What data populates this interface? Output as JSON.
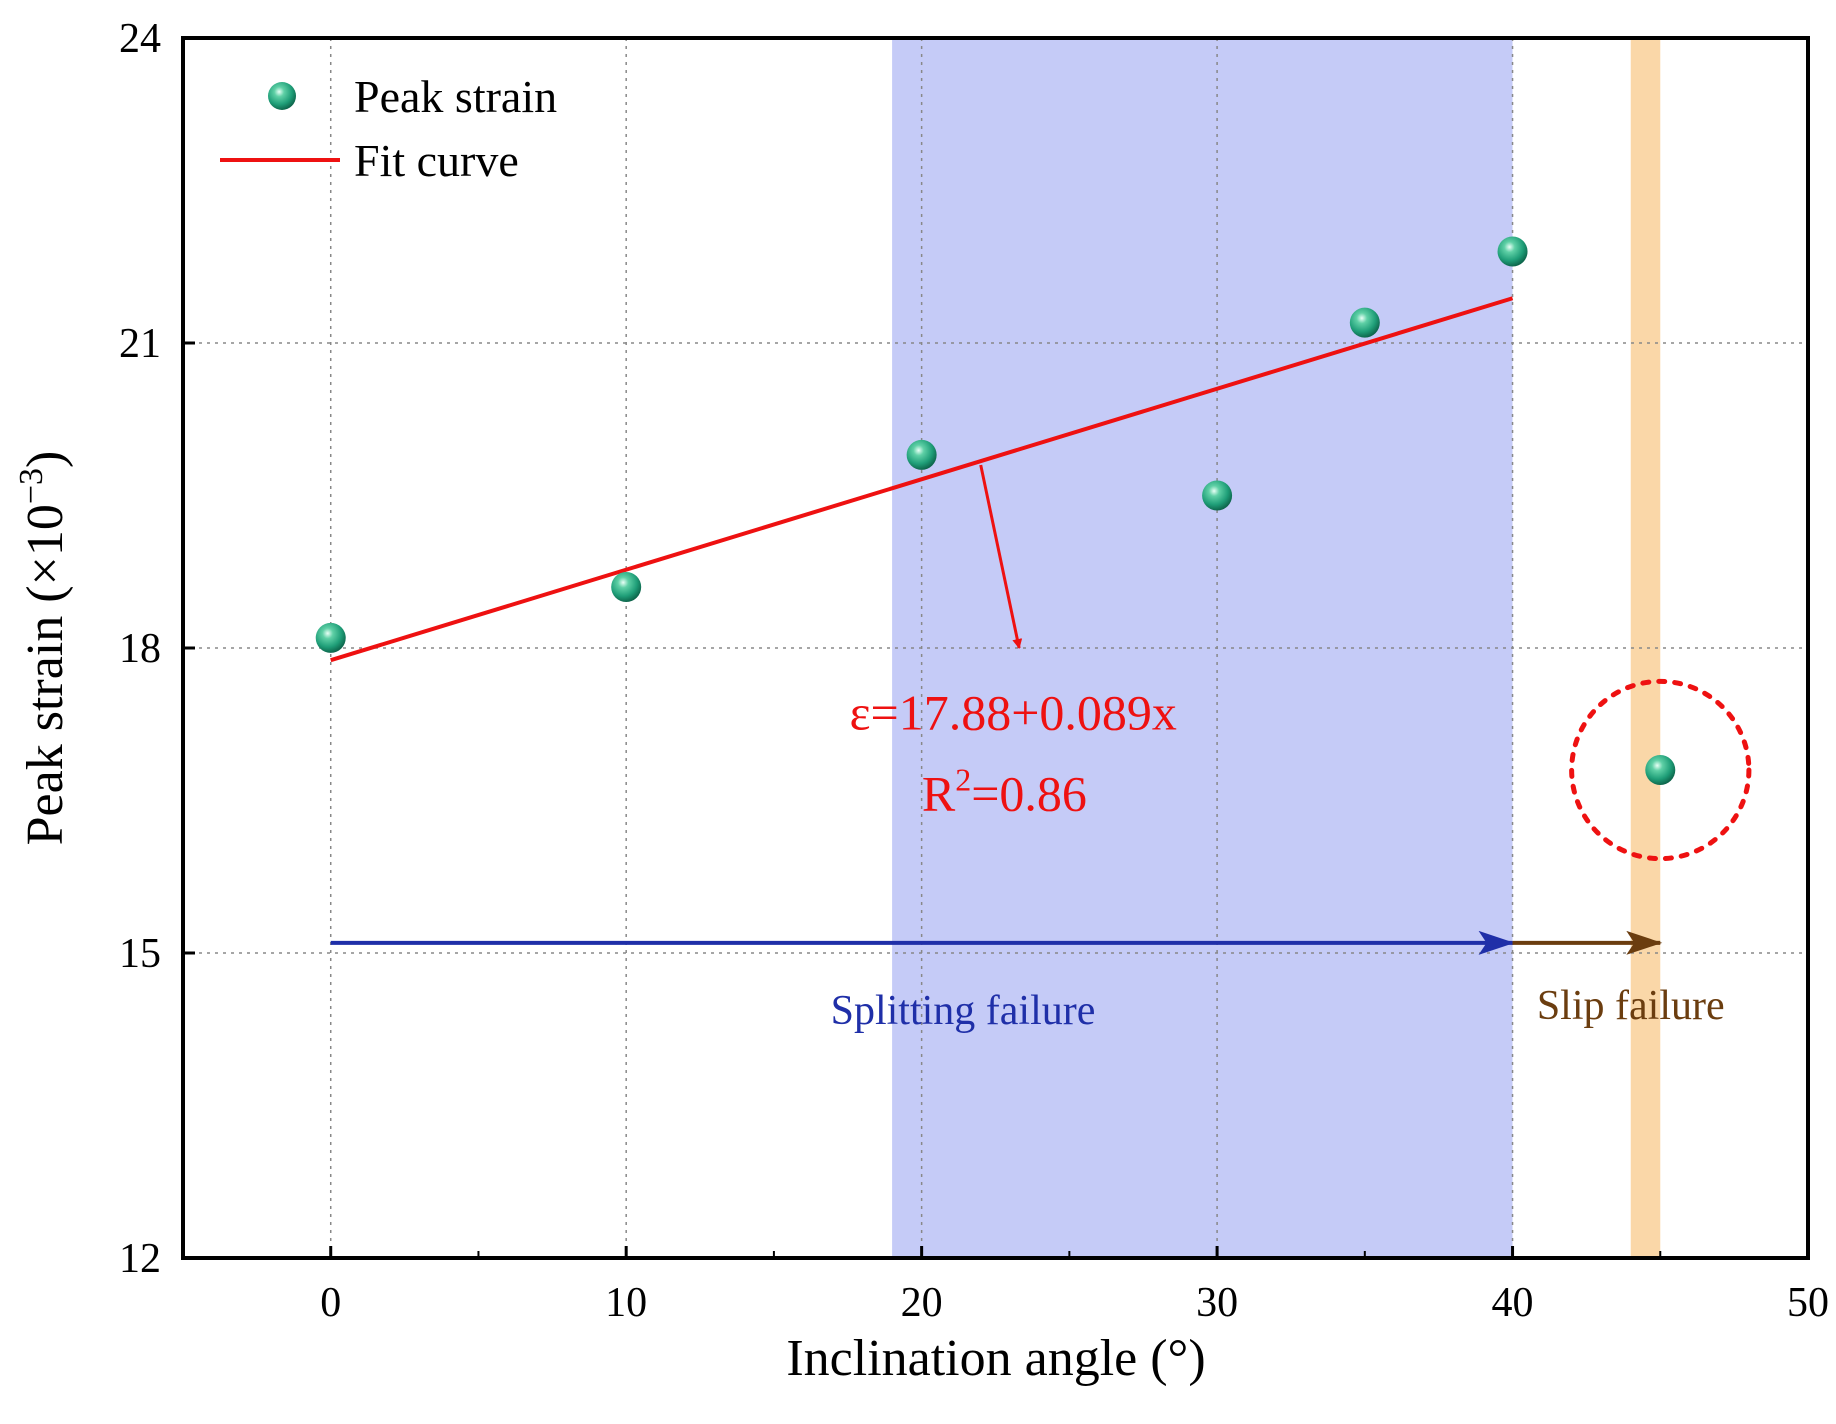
{
  "chart_data": {
    "type": "scatter",
    "xlabel": "Inclination angle (°)",
    "ylabel_main": "Peak strain (×10",
    "ylabel_exp": "−3",
    "ylabel_close": ")",
    "xlim": [
      -5,
      50
    ],
    "ylim": [
      12,
      24
    ],
    "xticks": [
      0,
      10,
      20,
      30,
      40,
      50
    ],
    "yticks": [
      12,
      15,
      18,
      21,
      24
    ],
    "grid": true,
    "legend_position": "top-left",
    "series": [
      {
        "name": "Peak strain",
        "kind": "points",
        "x": [
          0,
          10,
          20,
          30,
          35,
          40,
          45
        ],
        "y": [
          18.1,
          18.6,
          19.9,
          19.5,
          21.2,
          21.9,
          16.8
        ]
      },
      {
        "name": "Fit curve",
        "kind": "line",
        "x": [
          0,
          40
        ],
        "y": [
          17.88,
          21.44
        ]
      }
    ],
    "bands": [
      {
        "x0": 19,
        "x1": 40,
        "color": "#c5cbf7"
      },
      {
        "x0": 44,
        "x1": 45,
        "color": "#fad7a8"
      }
    ],
    "equation": "ε=17.88+0.089x",
    "r2_prefix": "R",
    "r2_exp": "2",
    "r2_value": "=0.86",
    "equation_arrow": {
      "from_x": 22,
      "from_y": 19.8,
      "to_x": 23.3,
      "to_y": 18.0
    },
    "regions": [
      {
        "label": "Splitting failure",
        "x0": 0,
        "x1": 40,
        "y": 15.1,
        "label_x": 21.4,
        "label_y": 14.3,
        "color": "#1f2fa8"
      },
      {
        "label": "Slip failure",
        "x0": 40,
        "x1": 45,
        "y": 15.1,
        "label_x": 44.0,
        "label_y": 14.35,
        "color": "#6b3d0f"
      }
    ],
    "highlight_circle": {
      "x": 45,
      "y": 16.8,
      "radius_x_units": 3.0,
      "label": ""
    },
    "colors": {
      "point": "#1f9e78",
      "fit": "#ee1111",
      "grid": "#888888",
      "axis": "#000000"
    }
  }
}
